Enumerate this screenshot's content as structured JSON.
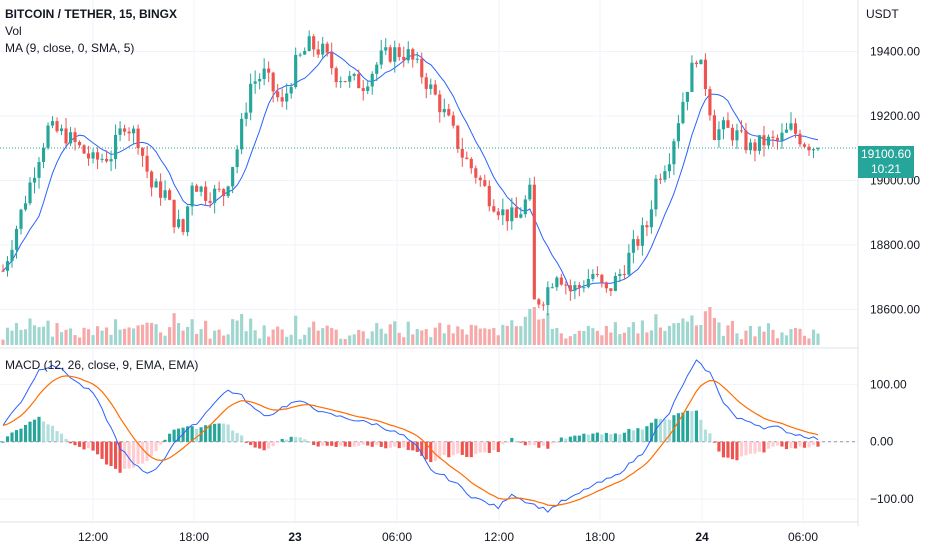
{
  "header": {
    "title": "BITCOIN / TETHER, 15, BINGX",
    "vol_label": "Vol",
    "ma_label": "MA (9, close, 0, SMA, 5)",
    "currency": "USDT"
  },
  "macd_panel": {
    "label": "MACD (12, 26, close, 9, EMA, EMA)"
  },
  "last_price": {
    "value": "19100.60",
    "countdown": "10:21"
  },
  "colors": {
    "up": "#26a69a",
    "down": "#ef5350",
    "ma_line": "#2962ff",
    "signal_line": "#ff6d00",
    "vol_up": "#9fd6cf",
    "vol_down": "#f6a9a8",
    "hist_up_strong": "#26a69a",
    "hist_up_weak": "#b2dfdb",
    "hist_down_strong": "#ef5350",
    "hist_down_weak": "#ffcdd2"
  },
  "chart_data": [
    {
      "type": "candlestick",
      "title": "BITCOIN / TETHER, 15, BINGX",
      "ylabel": "USDT",
      "ylim": [
        18480,
        19560
      ],
      "y_ticks": [
        "19400.00",
        "19200.00",
        "19000.00",
        "18800.00",
        "18600.00"
      ],
      "x_ticks": [
        "12:00",
        "18:00",
        "23",
        "06:00",
        "12:00",
        "18:00",
        "24",
        "06:00"
      ],
      "bold_x_ticks": [
        "23",
        "24"
      ],
      "grid": true,
      "price_anchors": [
        [
          0,
          18720
        ],
        [
          4,
          18900
        ],
        [
          8,
          19080
        ],
        [
          10,
          19160
        ],
        [
          14,
          19140
        ],
        [
          17,
          19100
        ],
        [
          20,
          19060
        ],
        [
          24,
          19080
        ],
        [
          27,
          19180
        ],
        [
          30,
          19130
        ],
        [
          33,
          18980
        ],
        [
          36,
          18960
        ],
        [
          38,
          18880
        ],
        [
          40,
          18840
        ],
        [
          42,
          19000
        ],
        [
          45,
          18960
        ],
        [
          49,
          18960
        ],
        [
          52,
          19100
        ],
        [
          55,
          19300
        ],
        [
          58,
          19330
        ],
        [
          60,
          19280
        ],
        [
          62,
          19230
        ],
        [
          65,
          19360
        ],
        [
          68,
          19420
        ],
        [
          71,
          19400
        ],
        [
          74,
          19330
        ],
        [
          77,
          19310
        ],
        [
          80,
          19300
        ],
        [
          84,
          19380
        ],
        [
          87,
          19400
        ],
        [
          90,
          19390
        ],
        [
          93,
          19330
        ],
        [
          96,
          19260
        ],
        [
          99,
          19180
        ],
        [
          102,
          19080
        ],
        [
          105,
          19020
        ],
        [
          108,
          18950
        ],
        [
          111,
          18900
        ],
        [
          114,
          18880
        ],
        [
          117,
          18960
        ],
        [
          118,
          18620
        ],
        [
          120,
          18640
        ],
        [
          123,
          18720
        ],
        [
          126,
          18660
        ],
        [
          128,
          18670
        ],
        [
          131,
          18710
        ],
        [
          134,
          18650
        ],
        [
          137,
          18710
        ],
        [
          140,
          18790
        ],
        [
          143,
          18860
        ],
        [
          145,
          19000
        ],
        [
          148,
          19080
        ],
        [
          151,
          19250
        ],
        [
          154,
          19390
        ],
        [
          156,
          19300
        ],
        [
          158,
          19150
        ],
        [
          160,
          19160
        ],
        [
          163,
          19140
        ],
        [
          166,
          19100
        ],
        [
          169,
          19120
        ],
        [
          172,
          19120
        ],
        [
          175,
          19160
        ],
        [
          178,
          19120
        ],
        [
          181,
          19100
        ]
      ],
      "candle_count": 182,
      "ma_period": 9,
      "last_price": 19100.6
    },
    {
      "type": "bar",
      "name": "Vol",
      "note_values": "volume bars, relative scale, no axis printed"
    },
    {
      "type": "line",
      "title": "MACD (12, 26, close, 9, EMA, EMA)",
      "ylim": [
        -140,
        160
      ],
      "y_ticks": [
        "100.00",
        "0.00",
        "−100.00"
      ],
      "macd_anchors": [
        [
          0,
          30
        ],
        [
          4,
          70
        ],
        [
          8,
          125
        ],
        [
          11,
          135
        ],
        [
          14,
          120
        ],
        [
          17,
          100
        ],
        [
          20,
          85
        ],
        [
          23,
          40
        ],
        [
          26,
          -10
        ],
        [
          29,
          -40
        ],
        [
          32,
          -55
        ],
        [
          35,
          -40
        ],
        [
          38,
          0
        ],
        [
          41,
          20
        ],
        [
          44,
          40
        ],
        [
          47,
          70
        ],
        [
          50,
          90
        ],
        [
          53,
          80
        ],
        [
          56,
          55
        ],
        [
          59,
          45
        ],
        [
          62,
          60
        ],
        [
          65,
          70
        ],
        [
          68,
          65
        ],
        [
          71,
          50
        ],
        [
          74,
          45
        ],
        [
          77,
          40
        ],
        [
          80,
          35
        ],
        [
          83,
          30
        ],
        [
          86,
          20
        ],
        [
          89,
          10
        ],
        [
          92,
          -10
        ],
        [
          95,
          -50
        ],
        [
          98,
          -60
        ],
        [
          101,
          -75
        ],
        [
          104,
          -95
        ],
        [
          107,
          -105
        ],
        [
          110,
          -115
        ],
        [
          113,
          -90
        ],
        [
          115,
          -100
        ],
        [
          118,
          -110
        ],
        [
          121,
          -120
        ],
        [
          124,
          -105
        ],
        [
          127,
          -95
        ],
        [
          130,
          -80
        ],
        [
          133,
          -70
        ],
        [
          136,
          -60
        ],
        [
          139,
          -40
        ],
        [
          142,
          -20
        ],
        [
          145,
          20
        ],
        [
          148,
          50
        ],
        [
          151,
          100
        ],
        [
          154,
          140
        ],
        [
          157,
          120
        ],
        [
          160,
          70
        ],
        [
          163,
          40
        ],
        [
          166,
          35
        ],
        [
          169,
          25
        ],
        [
          172,
          25
        ],
        [
          175,
          15
        ],
        [
          178,
          10
        ],
        [
          181,
          5
        ]
      ],
      "signal_length": 9
    }
  ]
}
